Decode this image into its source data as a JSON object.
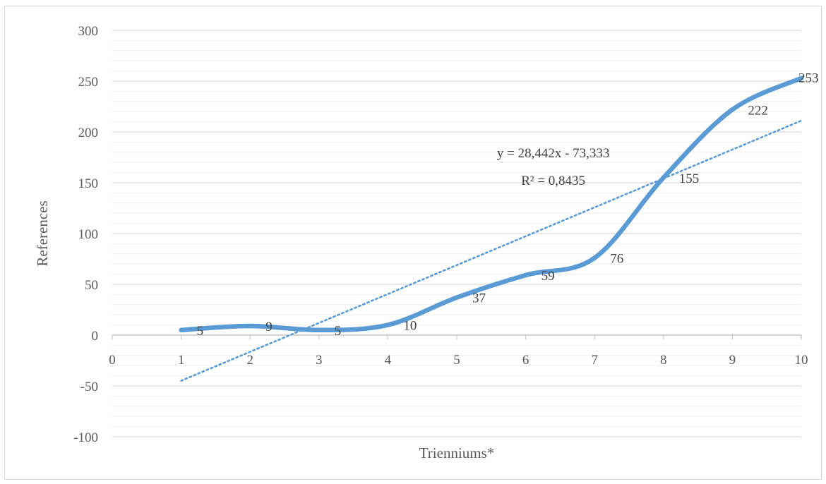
{
  "chart_data": {
    "type": "line",
    "xlabel": "Trienniums*",
    "ylabel": "References",
    "ylim": [
      -100,
      300
    ],
    "xlim": [
      0,
      10
    ],
    "y_ticks": [
      -100,
      -50,
      0,
      50,
      100,
      150,
      200,
      250,
      300
    ],
    "x_ticks": [
      "0",
      "1",
      "2",
      "3",
      "4",
      "5",
      "6",
      "7",
      "8",
      "9",
      "10"
    ],
    "grid": "horizontal major and minor",
    "series": [
      {
        "x": [
          1,
          2,
          3,
          4,
          5,
          6,
          7,
          8,
          9,
          10
        ],
        "values": [
          5,
          9,
          5,
          10,
          37,
          59,
          76,
          155,
          222,
          253
        ],
        "data_labels": [
          "5",
          "9",
          "5",
          "10",
          "37",
          "59",
          "76",
          "155",
          "222",
          "253"
        ],
        "color": "#5b9bd5",
        "smooth": true
      }
    ],
    "trendline": {
      "type": "linear",
      "slope": 28.442,
      "intercept": -73.333,
      "x_range": [
        1,
        10
      ],
      "equation_label": "y = 28,442x - 73,333",
      "r2_label": "R² = 0,8435",
      "color": "#5b9bd5",
      "style": "dotted"
    }
  }
}
